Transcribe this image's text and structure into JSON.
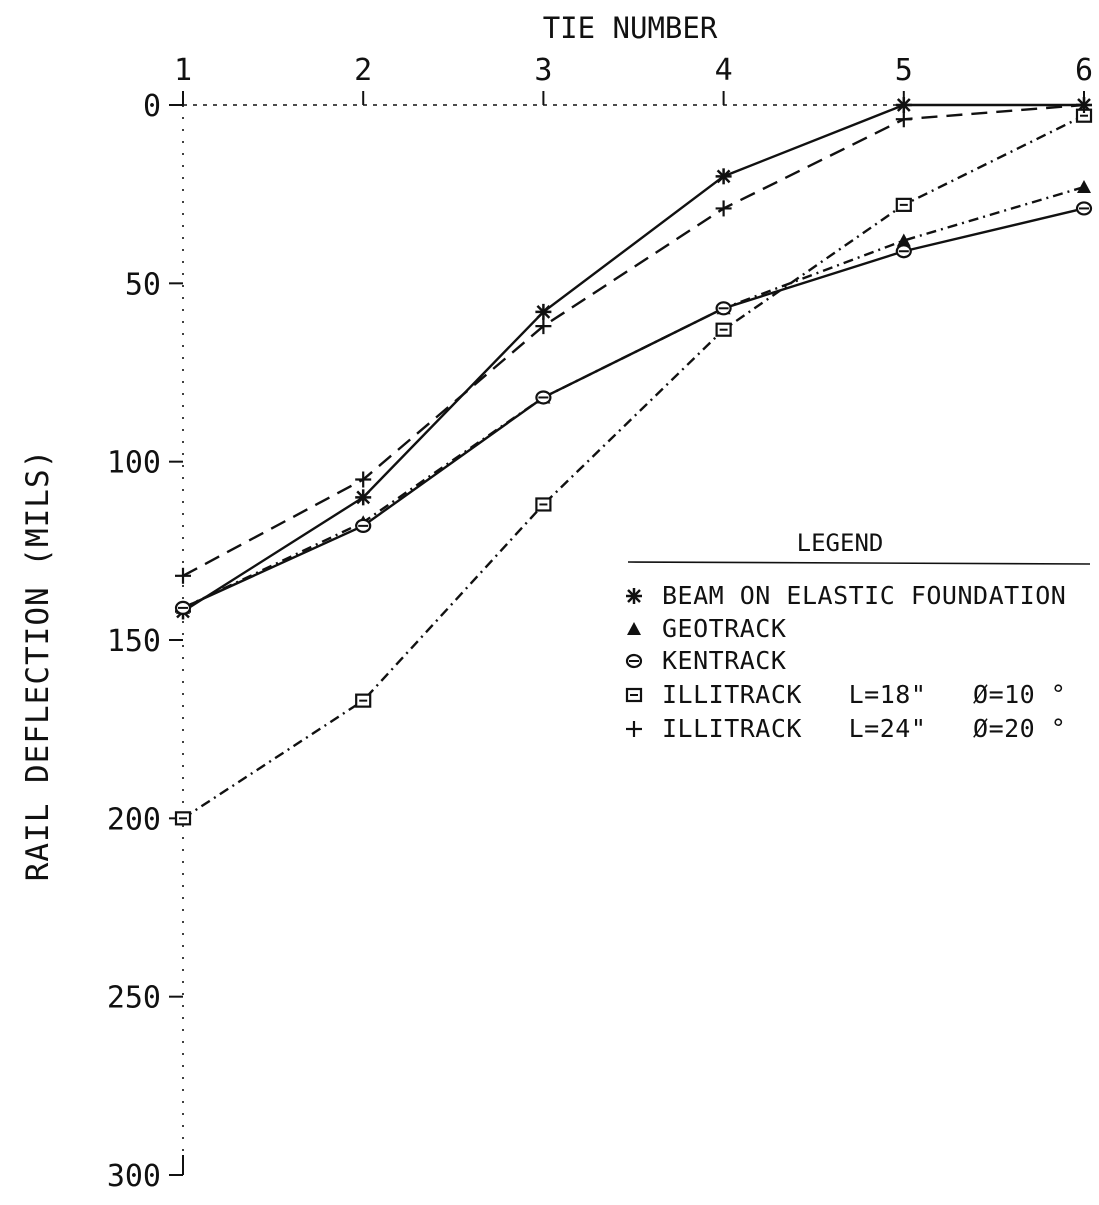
{
  "chart_data": {
    "type": "line",
    "title": "TIE NUMBER",
    "xlabel": "TIE NUMBER",
    "ylabel": "RAIL DEFLECTION (MILS)",
    "x": [
      1,
      2,
      3,
      4,
      5,
      6
    ],
    "x_ticks": [
      "1",
      "2",
      "3",
      "4",
      "5",
      "6"
    ],
    "xlim": [
      1,
      6
    ],
    "ylim": [
      0,
      300
    ],
    "y_inverted": true,
    "y_ticks": [
      "0",
      "50",
      "100",
      "150",
      "200",
      "250",
      "300"
    ],
    "x_axis_position": "top",
    "grid": false,
    "legend_position": "right-middle",
    "legend": {
      "title": "LEGEND",
      "entries": [
        {
          "series": 0,
          "symbol": "✱",
          "label": "BEAM ON ELASTIC FOUNDATION"
        },
        {
          "series": 1,
          "symbol": "▲",
          "label": "GEOTRACK"
        },
        {
          "series": 2,
          "symbol": "⊖",
          "label": "KENTRACK"
        },
        {
          "series": 3,
          "symbol": "⊡",
          "label": "ILLITRACK   L=18\"   Ø=10 °"
        },
        {
          "series": 4,
          "symbol": "+",
          "label": "ILLITRACK   L=24\"   Ø=20 °"
        }
      ]
    },
    "series": [
      {
        "name": "BEAM ON ELASTIC FOUNDATION",
        "marker": "asterisk",
        "line": "solid",
        "values": [
          142,
          110,
          58,
          20,
          0,
          0
        ]
      },
      {
        "name": "GEOTRACK",
        "marker": "triangle",
        "line": "dashdot",
        "values": [
          141,
          117,
          82,
          57,
          38,
          23
        ]
      },
      {
        "name": "KENTRACK",
        "marker": "circle",
        "line": "solid",
        "values": [
          141,
          118,
          82,
          57,
          41,
          29
        ]
      },
      {
        "name": "ILLITRACK L=18\" Ø=10°",
        "marker": "square",
        "line": "dashdot",
        "values": [
          200,
          167,
          112,
          63,
          28,
          3
        ]
      },
      {
        "name": "ILLITRACK L=24\" Ø=20°",
        "marker": "plus",
        "line": "dashed",
        "values": [
          132,
          105,
          62,
          29,
          4,
          0
        ]
      }
    ]
  }
}
